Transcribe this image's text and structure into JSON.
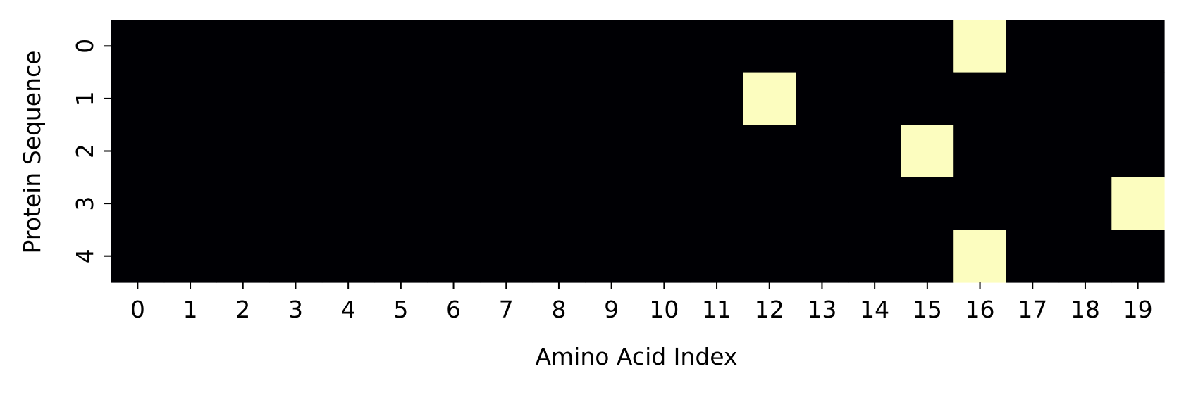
{
  "chart_data": {
    "type": "heatmap",
    "title": "",
    "xlabel": "Amino Acid Index",
    "ylabel": "Protein Sequence",
    "x_categories": [
      "0",
      "1",
      "2",
      "3",
      "4",
      "5",
      "6",
      "7",
      "8",
      "9",
      "10",
      "11",
      "12",
      "13",
      "14",
      "15",
      "16",
      "17",
      "18",
      "19"
    ],
    "y_categories": [
      "0",
      "1",
      "2",
      "3",
      "4"
    ],
    "values": [
      [
        0,
        0,
        0,
        0,
        0,
        0,
        0,
        0,
        0,
        0,
        0,
        0,
        0,
        0,
        0,
        0,
        1,
        0,
        0,
        0
      ],
      [
        0,
        0,
        0,
        0,
        0,
        0,
        0,
        0,
        0,
        0,
        0,
        0,
        1,
        0,
        0,
        0,
        0,
        0,
        0,
        0
      ],
      [
        0,
        0,
        0,
        0,
        0,
        0,
        0,
        0,
        0,
        0,
        0,
        0,
        0,
        0,
        0,
        1,
        0,
        0,
        0,
        0
      ],
      [
        0,
        0,
        0,
        0,
        0,
        0,
        0,
        0,
        0,
        0,
        0,
        0,
        0,
        0,
        0,
        0,
        0,
        0,
        0,
        1
      ],
      [
        0,
        0,
        0,
        0,
        0,
        0,
        0,
        0,
        0,
        0,
        0,
        0,
        0,
        0,
        0,
        0,
        1,
        0,
        0,
        0
      ]
    ],
    "colors": {
      "low": "#000004",
      "high": "#fcfdbf"
    },
    "colorbar": false,
    "grid": false
  }
}
